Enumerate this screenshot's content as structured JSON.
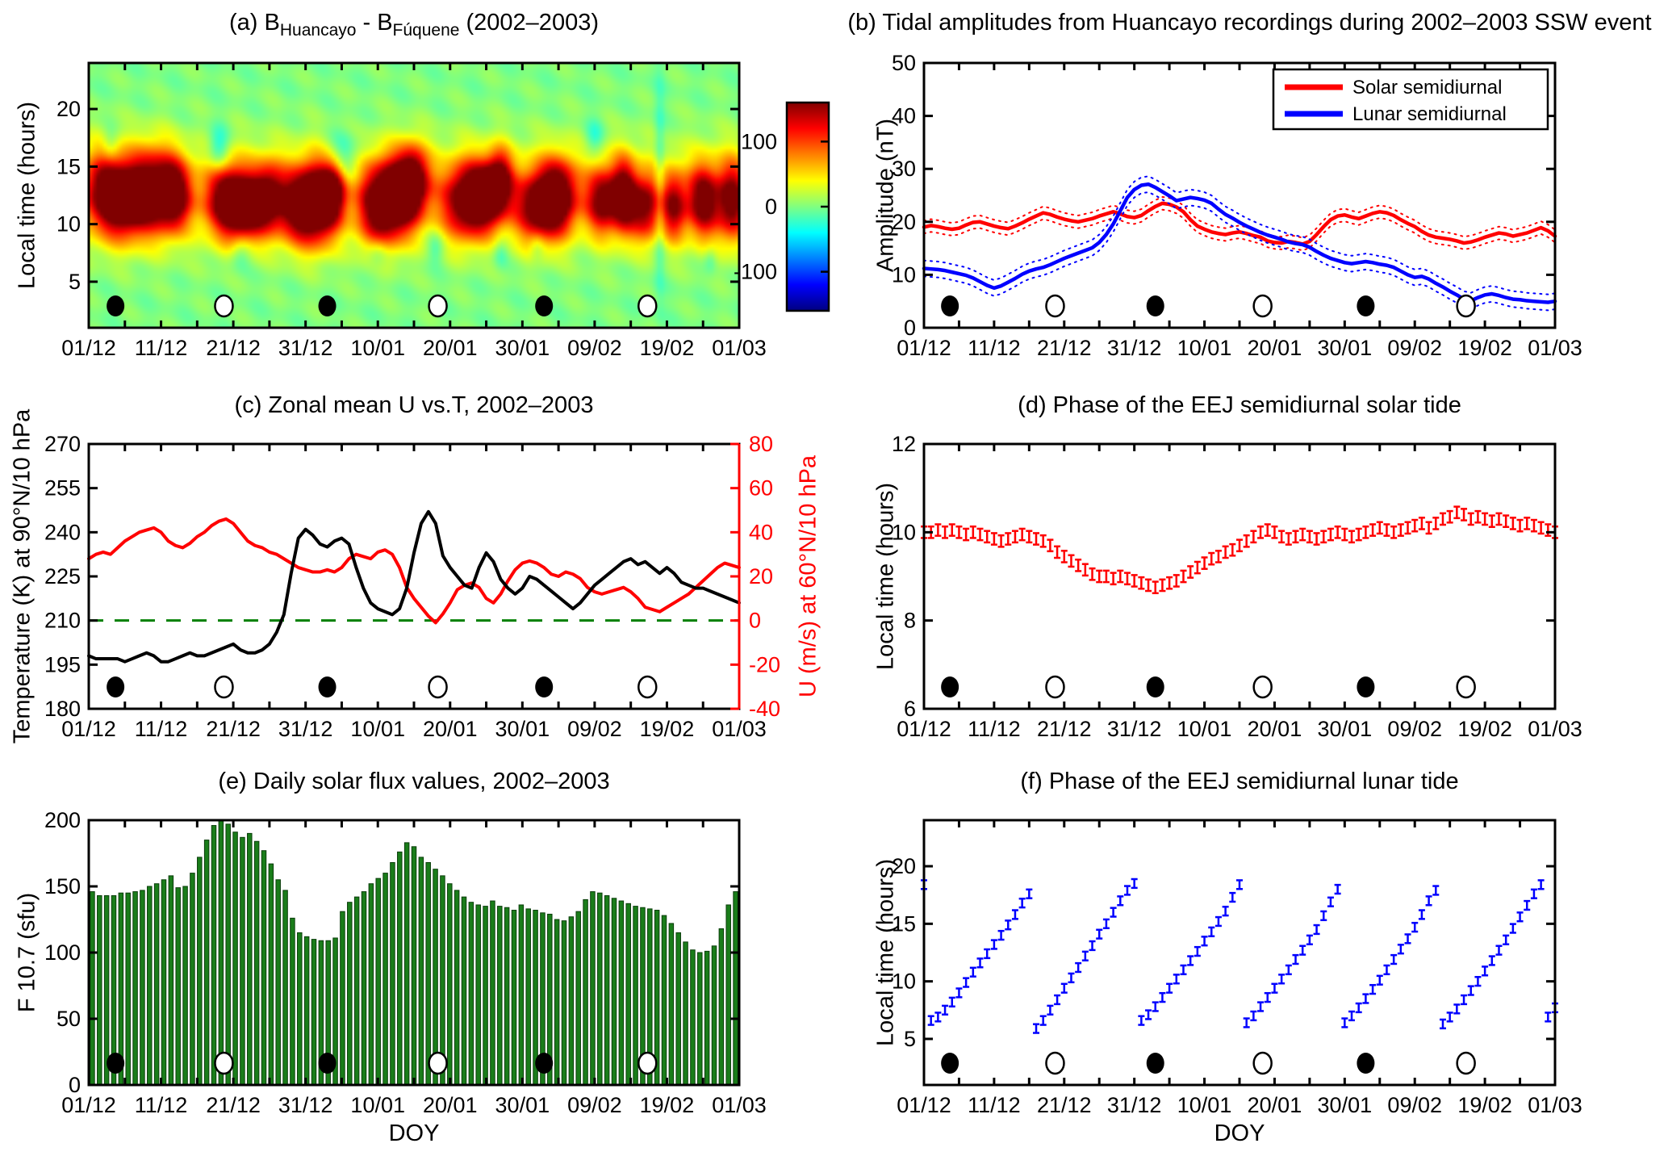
{
  "figure": {
    "background": "#ffffff"
  },
  "x_axis": {
    "tick_labels": [
      "01/12",
      "11/12",
      "21/12",
      "31/12",
      "10/01",
      "20/01",
      "30/01",
      "09/02",
      "19/02",
      "01/03"
    ],
    "tick_days": [
      0,
      10,
      20,
      30,
      40,
      50,
      60,
      70,
      80,
      90
    ],
    "minor_tick_step_days": 5,
    "span_days": 90
  },
  "moon_markers": {
    "new_moon_days": [
      3.7,
      33.0,
      63.0
    ],
    "full_moon_days": [
      18.7,
      48.3,
      77.3
    ]
  },
  "colorbar": {
    "tick_labels": [
      "100",
      "0",
      "-100"
    ],
    "tick_values": [
      100,
      0,
      -100
    ],
    "value_range": [
      -160,
      160
    ]
  },
  "colors": {
    "red": "#ff0000",
    "blue": "#0000ff",
    "bar_green": "#1a7d1a",
    "dash_green": "#008000",
    "black": "#000000"
  },
  "chart_data": [
    {
      "id": "a",
      "type": "heatmap",
      "title": "(a) B_{Huancayo} - B_{Fúquene} (2002–2003)",
      "ylabel": "Local time (hours)",
      "ylim": [
        1,
        24
      ],
      "yticks": [
        5,
        10,
        15,
        20
      ],
      "value_range": [
        -160,
        160
      ],
      "band": {
        "hour_center": 12.6,
        "hour_sigma": 3.1,
        "amp": 42
      },
      "positive_blobs": [
        [
          2,
          13,
          2.0,
          2.5,
          110
        ],
        [
          5,
          12,
          2.2,
          2.2,
          145
        ],
        [
          9,
          13,
          2.5,
          2.5,
          155
        ],
        [
          12,
          12.5,
          1.5,
          2.0,
          120
        ],
        [
          19,
          12,
          2.0,
          2.2,
          140
        ],
        [
          22,
          11.5,
          2.0,
          2.0,
          155
        ],
        [
          25,
          12.5,
          1.5,
          2.0,
          115
        ],
        [
          29,
          11.5,
          2.0,
          2.2,
          150
        ],
        [
          32,
          12,
          1.8,
          2.5,
          165
        ],
        [
          34,
          13.5,
          1.2,
          2.0,
          130
        ],
        [
          40,
          11.5,
          2.0,
          2.5,
          140
        ],
        [
          43,
          12.5,
          2.0,
          2.3,
          165
        ],
        [
          45,
          14,
          1.5,
          2.0,
          130
        ],
        [
          52,
          12,
          2.2,
          2.3,
          145
        ],
        [
          55,
          12.5,
          1.8,
          2.0,
          155
        ],
        [
          57,
          14,
          1.2,
          1.8,
          115
        ],
        [
          62,
          11.5,
          2.2,
          2.2,
          140
        ],
        [
          65,
          12.5,
          1.8,
          2.2,
          155
        ],
        [
          71,
          12,
          1.5,
          2.0,
          135
        ],
        [
          74,
          12.5,
          1.2,
          2.2,
          155
        ],
        [
          77,
          11.5,
          1.5,
          2.0,
          130
        ],
        [
          81,
          11.5,
          1.2,
          2.0,
          120
        ],
        [
          85,
          12,
          1.5,
          2.2,
          145
        ],
        [
          89,
          12,
          1.5,
          2.4,
          140
        ]
      ],
      "negative_blobs": [
        [
          3,
          17,
          0.8,
          1.0,
          -30
        ],
        [
          18,
          16.5,
          1.0,
          1.3,
          -55
        ],
        [
          34.5,
          15.5,
          1.6,
          1.6,
          -85
        ],
        [
          21,
          7.5,
          1.0,
          1.0,
          -35
        ],
        [
          40,
          7.5,
          1.0,
          1.0,
          -35
        ],
        [
          48,
          8,
          0.8,
          1.0,
          -30
        ],
        [
          57,
          7.5,
          0.7,
          0.9,
          -28
        ],
        [
          62,
          8,
          0.7,
          0.9,
          -28
        ],
        [
          70,
          17.5,
          0.9,
          1.1,
          -35
        ],
        [
          79,
          13,
          0.5,
          6.0,
          -35
        ],
        [
          86,
          7,
          0.6,
          0.8,
          -25
        ]
      ]
    },
    {
      "id": "b",
      "type": "line",
      "title": "(b) Tidal amplitudes from Huancayo recordings during 2002–2003 SSW event",
      "ylabel": "Amplitude (nT)",
      "ylim": [
        0,
        50
      ],
      "yticks": [
        0,
        10,
        20,
        30,
        40,
        50
      ],
      "series": [
        {
          "name": "Solar semidiurnal",
          "color": "#ff0000",
          "envelope": 1.2,
          "values": [
            19.0,
            19.3,
            19.1,
            18.8,
            18.6,
            18.8,
            19.4,
            19.9,
            20.0,
            19.6,
            19.2,
            18.9,
            18.7,
            19.2,
            19.8,
            20.5,
            21.1,
            21.7,
            21.4,
            20.9,
            20.5,
            20.2,
            20.0,
            20.3,
            20.6,
            21.1,
            21.5,
            21.9,
            21.5,
            21.0,
            20.8,
            21.2,
            22.1,
            22.9,
            23.5,
            23.3,
            22.8,
            21.9,
            20.4,
            19.2,
            18.6,
            18.1,
            17.8,
            17.6,
            17.9,
            18.1,
            17.8,
            17.4,
            17.1,
            16.4,
            16.1,
            16.0,
            16.3,
            16.1,
            15.8,
            16.3,
            17.6,
            19.1,
            20.4,
            21.1,
            21.3,
            20.9,
            20.6,
            21.1,
            21.6,
            21.9,
            21.7,
            21.2,
            20.4,
            19.7,
            19.1,
            18.2,
            17.5,
            17.1,
            16.9,
            16.7,
            16.4,
            16.0,
            16.2,
            16.6,
            17.1,
            17.5,
            17.9,
            17.7,
            17.3,
            17.6,
            17.9,
            18.4,
            18.9,
            18.3,
            17.3
          ]
        },
        {
          "name": "Lunar semidiurnal",
          "color": "#0000ff",
          "envelope": 1.5,
          "values": [
            11.2,
            11.1,
            11.0,
            10.8,
            10.5,
            10.2,
            9.9,
            9.4,
            8.7,
            8.0,
            7.5,
            7.9,
            8.6,
            9.3,
            10.1,
            10.7,
            11.1,
            11.4,
            11.9,
            12.5,
            13.1,
            13.6,
            14.1,
            14.6,
            15.1,
            16.1,
            17.6,
            19.6,
            22.1,
            24.6,
            26.1,
            26.9,
            27.1,
            26.5,
            25.7,
            24.9,
            24.0,
            24.3,
            24.6,
            24.4,
            24.1,
            23.5,
            22.4,
            21.4,
            20.7,
            19.9,
            19.2,
            18.6,
            18.0,
            17.5,
            17.1,
            16.7,
            16.2,
            15.9,
            15.7,
            15.2,
            14.4,
            13.7,
            13.1,
            12.7,
            12.3,
            12.1,
            12.3,
            12.5,
            12.3,
            12.0,
            11.8,
            11.4,
            10.7,
            10.0,
            9.5,
            9.7,
            9.2,
            8.4,
            7.7,
            6.9,
            6.2,
            5.4,
            5.1,
            5.7,
            6.2,
            6.4,
            6.1,
            5.7,
            5.4,
            5.3,
            5.1,
            5.0,
            4.9,
            4.8,
            5.0
          ]
        }
      ],
      "legend": [
        {
          "label": "Solar semidiurnal",
          "color": "#ff0000"
        },
        {
          "label": "Lunar semidiurnal",
          "color": "#0000ff"
        }
      ]
    },
    {
      "id": "c",
      "type": "dual_line",
      "title": "(c) Zonal mean U vs.T, 2002–2003",
      "left": {
        "label": "Temperature (K) at 90°N/10 hPa",
        "color": "#000000",
        "ylim": [
          180,
          270
        ],
        "yticks": [
          180,
          195,
          210,
          225,
          240,
          255,
          270
        ],
        "values": [
          198,
          197,
          197,
          197,
          197,
          196,
          197,
          198,
          199,
          198,
          196,
          196,
          197,
          198,
          199,
          198,
          198,
          199,
          200,
          201,
          202,
          200,
          199,
          199,
          200,
          202,
          206,
          212,
          226,
          238,
          241,
          239,
          236,
          235,
          237,
          238,
          236,
          228,
          221,
          216,
          214,
          213,
          212,
          214,
          221,
          233,
          243,
          247,
          243,
          232,
          228,
          225,
          222,
          221,
          228,
          233,
          230,
          224,
          221,
          219,
          221,
          225,
          224,
          222,
          220,
          218,
          216,
          214,
          216,
          219,
          222,
          224,
          226,
          228,
          230,
          231,
          229,
          230,
          228,
          226,
          228,
          226,
          223,
          222,
          221,
          221,
          220,
          219,
          218,
          217,
          216
        ]
      },
      "right": {
        "label": "U (m/s) at 60°N/10 hPa",
        "color": "#ff0000",
        "ylim": [
          -40,
          80
        ],
        "yticks": [
          -40,
          -20,
          0,
          20,
          40,
          60,
          80
        ],
        "values": [
          28,
          30,
          31,
          30,
          33,
          36,
          38,
          40,
          41,
          42,
          40,
          36,
          34,
          33,
          35,
          38,
          40,
          43,
          45,
          46,
          44,
          40,
          36,
          34,
          33,
          31,
          30,
          28,
          26,
          24,
          23,
          22,
          22,
          23,
          22,
          24,
          28,
          30,
          29,
          28,
          31,
          32,
          30,
          24,
          15,
          10,
          6,
          2,
          -1,
          3,
          8,
          14,
          16,
          17,
          15,
          10,
          8,
          12,
          18,
          23,
          26,
          27,
          26,
          24,
          21,
          20,
          22,
          21,
          19,
          15,
          13,
          12,
          13,
          14,
          15,
          13,
          10,
          6,
          5,
          4,
          6,
          8,
          10,
          12,
          15,
          18,
          21,
          24,
          26,
          25,
          24
        ]
      },
      "zero_line": {
        "color": "#008000",
        "right_value": 0,
        "style": "dashed"
      }
    },
    {
      "id": "d",
      "type": "errorbar",
      "title": "(d) Phase of the EEJ semidiurnal solar tide",
      "ylabel": "Local time (hours)",
      "color": "#ff0000",
      "error": 0.13,
      "ylim": [
        6,
        12
      ],
      "yticks": [
        6,
        8,
        10,
        12
      ],
      "values": [
        10.0,
        10.0,
        10.05,
        10.0,
        10.05,
        10.0,
        9.95,
        10.0,
        9.95,
        9.9,
        9.85,
        9.8,
        9.85,
        9.9,
        9.95,
        9.9,
        9.85,
        9.8,
        9.7,
        9.55,
        9.45,
        9.35,
        9.25,
        9.15,
        9.05,
        9.0,
        9.0,
        8.95,
        9.0,
        8.95,
        8.9,
        8.85,
        8.8,
        8.75,
        8.8,
        8.85,
        8.9,
        9.0,
        9.1,
        9.2,
        9.3,
        9.4,
        9.45,
        9.55,
        9.6,
        9.7,
        9.8,
        9.9,
        10.0,
        10.05,
        10.0,
        9.9,
        9.85,
        9.9,
        9.95,
        9.9,
        9.85,
        9.9,
        9.95,
        10.0,
        9.95,
        9.9,
        9.95,
        10.0,
        10.05,
        10.1,
        10.05,
        10.0,
        10.05,
        10.1,
        10.15,
        10.2,
        10.1,
        10.2,
        10.3,
        10.35,
        10.45,
        10.4,
        10.3,
        10.35,
        10.3,
        10.25,
        10.3,
        10.25,
        10.2,
        10.15,
        10.2,
        10.15,
        10.1,
        10.05,
        10.0
      ]
    },
    {
      "id": "e",
      "type": "bar",
      "title": "(e) Daily solar flux values, 2002–2003",
      "ylabel": "F 10.7 (sfu)",
      "xlabel": "DOY",
      "color": "#1a7d1a",
      "ylim": [
        0,
        200
      ],
      "yticks": [
        0,
        50,
        100,
        150,
        200
      ],
      "values": [
        146,
        143,
        143,
        143,
        145,
        145,
        146,
        147,
        150,
        152,
        155,
        158,
        149,
        150,
        160,
        172,
        185,
        196,
        202,
        197,
        191,
        187,
        190,
        184,
        177,
        167,
        155,
        147,
        126,
        115,
        112,
        110,
        109,
        109,
        111,
        131,
        138,
        142,
        146,
        152,
        156,
        160,
        168,
        176,
        183,
        180,
        172,
        168,
        163,
        158,
        152,
        147,
        142,
        138,
        136,
        135,
        139,
        135,
        134,
        132,
        136,
        133,
        132,
        130,
        129,
        125,
        124,
        127,
        131,
        140,
        146,
        145,
        143,
        141,
        139,
        137,
        135,
        134,
        133,
        132,
        128,
        122,
        115,
        108,
        102,
        100,
        101,
        105,
        118,
        136,
        146
      ]
    },
    {
      "id": "f",
      "type": "errorbar_ramps",
      "title": "(f) Phase of the EEJ semidiurnal lunar tide",
      "ylabel": "Local time (hours)",
      "xlabel": "DOY",
      "color": "#0000ff",
      "error": 0.38,
      "ylim": [
        1,
        24
      ],
      "yticks": [
        5,
        10,
        15,
        20
      ],
      "ramps": [
        {
          "start_day": 0,
          "values": [
            18.4
          ]
        },
        {
          "start_day": 1,
          "values": [
            6.6,
            6.9,
            7.5,
            8.2,
            9.0,
            9.9,
            10.8,
            11.6,
            12.4,
            13.2,
            14.0,
            14.9,
            15.8,
            16.8,
            17.6
          ]
        },
        {
          "start_day": 16,
          "values": [
            5.9,
            6.6,
            7.5,
            8.4,
            9.4,
            10.3,
            11.2,
            12.2,
            13.1,
            14.1,
            15.0,
            16.0,
            17.0,
            17.9,
            18.5
          ]
        },
        {
          "start_day": 31,
          "values": [
            6.6,
            7.1,
            7.8,
            8.6,
            9.4,
            10.2,
            11.0,
            11.8,
            12.6,
            13.5,
            14.3,
            15.2,
            16.1,
            17.3,
            18.4
          ]
        },
        {
          "start_day": 46,
          "values": [
            6.4,
            7.0,
            7.8,
            8.6,
            9.4,
            10.2,
            11.0,
            11.9,
            12.7,
            13.6,
            14.5,
            15.7,
            16.9,
            18.0
          ]
        },
        {
          "start_day": 60,
          "values": [
            6.4,
            7.0,
            7.7,
            8.5,
            9.3,
            10.1,
            11.0,
            11.9,
            12.8,
            13.7,
            14.7,
            15.8,
            17.0,
            17.9
          ]
        },
        {
          "start_day": 74,
          "values": [
            6.3,
            6.9,
            7.6,
            8.4,
            9.2,
            10.0,
            10.9,
            11.8,
            12.7,
            13.6,
            14.6,
            15.6,
            16.6,
            17.6,
            18.4
          ]
        },
        {
          "start_day": 89,
          "values": [
            6.9,
            7.7
          ]
        }
      ]
    }
  ]
}
